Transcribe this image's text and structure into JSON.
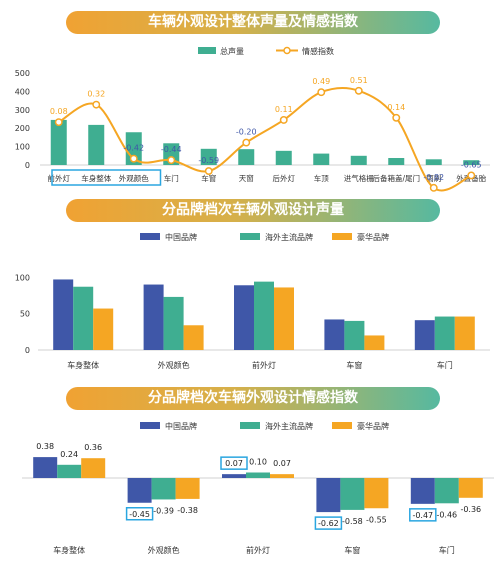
{
  "chart_data": [
    {
      "type": "bar+line",
      "title": "车辆外观设计整体声量及情感指数",
      "legend": [
        "总声量",
        "情感指数"
      ],
      "colors": {
        "volume": "#3fae91",
        "sentiment": "#f5a623",
        "sentiment_label_pos": "#f5a623",
        "sentiment_label_neg": "#3f57a8",
        "highlight": "#2aa6e0"
      },
      "categories": [
        "前外灯",
        "车身整体",
        "外观颜色",
        "车门",
        "车窗",
        "天窗",
        "后外灯",
        "车顶",
        "进气格栅",
        "后备箱盖/尾门",
        "雨刷",
        "外置备胎"
      ],
      "highlighted": [
        "前外灯",
        "车身整体",
        "外观颜色"
      ],
      "series": [
        {
          "name": "总声量",
          "axis": "left",
          "values": [
            245,
            218,
            178,
            118,
            88,
            86,
            77,
            62,
            50,
            38,
            31,
            26
          ]
        },
        {
          "name": "情感指数",
          "axis": "right",
          "values": [
            0.08,
            0.32,
            -0.42,
            -0.44,
            -0.59,
            -0.2,
            0.11,
            0.49,
            0.51,
            0.14,
            -0.82,
            -0.65
          ]
        }
      ],
      "y_ticks": [
        "0",
        "100",
        "200",
        "300",
        "400",
        "500"
      ],
      "ylim": [
        0,
        500
      ]
    },
    {
      "type": "bar",
      "title": "分品牌档次车辆外观设计声量",
      "categories": [
        "车身整体",
        "外观颜色",
        "前外灯",
        "车窗",
        "车门"
      ],
      "series": [
        {
          "name": "中国品牌",
          "color": "#3f57a8",
          "values": [
            97,
            90,
            89,
            42,
            41
          ]
        },
        {
          "name": "海外主流品牌",
          "color": "#3fae91",
          "values": [
            87,
            73,
            94,
            40,
            46
          ]
        },
        {
          "name": "豪华品牌",
          "color": "#f5a623",
          "values": [
            57,
            34,
            86,
            20,
            46
          ]
        }
      ],
      "y_ticks": [
        "0",
        "50",
        "100"
      ],
      "ylim": [
        0,
        110
      ]
    },
    {
      "type": "bar",
      "title": "分品牌档次车辆外观设计情感指数",
      "categories": [
        "车身整体",
        "外观颜色",
        "前外灯",
        "车窗",
        "车门"
      ],
      "series": [
        {
          "name": "中国品牌",
          "color": "#3f57a8",
          "values": [
            0.38,
            -0.45,
            0.07,
            -0.62,
            -0.47
          ]
        },
        {
          "name": "海外主流品牌",
          "color": "#3fae91",
          "values": [
            0.24,
            -0.39,
            0.1,
            -0.58,
            -0.46
          ]
        },
        {
          "name": "豪华品牌",
          "color": "#f5a623",
          "values": [
            0.36,
            -0.38,
            0.07,
            -0.55,
            -0.36
          ]
        }
      ],
      "highlighted_values": [
        "-0.45",
        "0.07",
        "-0.62",
        "-0.47"
      ],
      "value_labels": [
        [
          "0.38",
          "0.24",
          "0.36"
        ],
        [
          "-0.45",
          "-0.39",
          "-0.38"
        ],
        [
          "0.07",
          "0.10",
          "0.07"
        ],
        [
          "-0.62",
          "-0.58",
          "-0.55"
        ],
        [
          "-0.47",
          "-0.46",
          "-0.36"
        ]
      ]
    }
  ]
}
